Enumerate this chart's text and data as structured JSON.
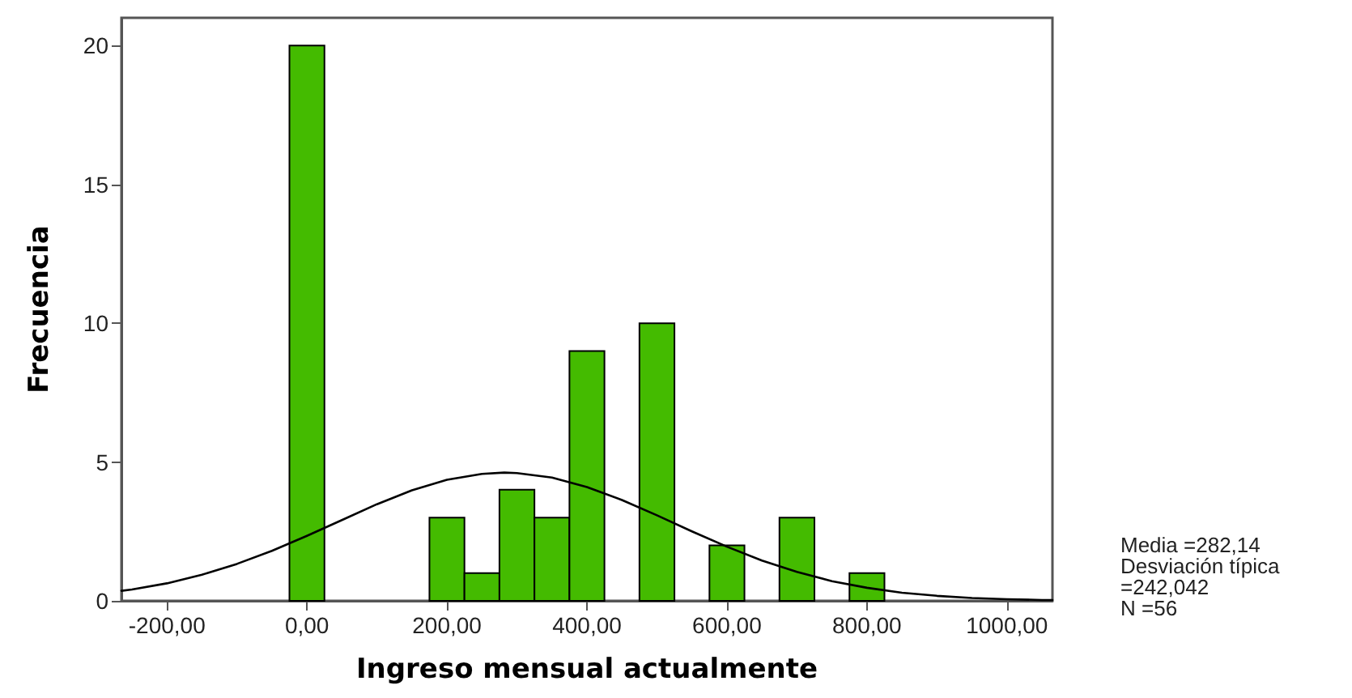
{
  "chart_data": {
    "type": "histogram",
    "xlabel": "Ingreso mensual actualmente",
    "ylabel": "Frecuencia",
    "bins": [
      -25,
      25,
      75,
      125,
      175,
      225,
      275,
      325,
      375,
      425,
      475,
      525,
      575,
      625,
      675,
      725,
      775,
      825
    ],
    "series": [
      {
        "color": "#44bb00",
        "values": [
          20,
          0,
          0,
          0,
          3,
          1,
          4,
          3,
          9,
          0,
          10,
          0,
          2,
          0,
          3,
          0,
          1
        ]
      },
      {
        "type": "line",
        "color": "#000000",
        "x": [
          -265,
          -250,
          -200,
          -150,
          -100,
          -50,
          0,
          50,
          100,
          150,
          200,
          250,
          282,
          300,
          350,
          400,
          450,
          500,
          550,
          600,
          650,
          700,
          750,
          800,
          850,
          900,
          950,
          1000,
          1050,
          1065
        ],
        "values": [
          0.36,
          0.41,
          0.63,
          0.94,
          1.33,
          1.8,
          2.34,
          2.91,
          3.48,
          3.98,
          4.36,
          4.57,
          4.62,
          4.6,
          4.44,
          4.1,
          3.63,
          3.08,
          2.5,
          1.95,
          1.45,
          1.04,
          0.71,
          0.47,
          0.29,
          0.18,
          0.1,
          0.06,
          0.03,
          0.03
        ]
      }
    ],
    "xlim": [
      -265,
      1065
    ],
    "xticks": [
      {
        "value": -200,
        "label": "-200,00"
      },
      {
        "value": 0,
        "label": "0,00"
      },
      {
        "value": 200,
        "label": "200,00"
      },
      {
        "value": 400,
        "label": "400,00"
      },
      {
        "value": 600,
        "label": "600,00"
      },
      {
        "value": 800,
        "label": "800,00"
      },
      {
        "value": 1000,
        "label": "1000,00"
      }
    ],
    "ylim": [
      0,
      21
    ],
    "yticks": [
      0,
      5,
      10,
      15,
      20
    ],
    "grid": false,
    "marker": "none",
    "line_style": "solid",
    "annotations": [
      "Media =282,14",
      "Desviación típica =242,042",
      "N =56"
    ]
  }
}
